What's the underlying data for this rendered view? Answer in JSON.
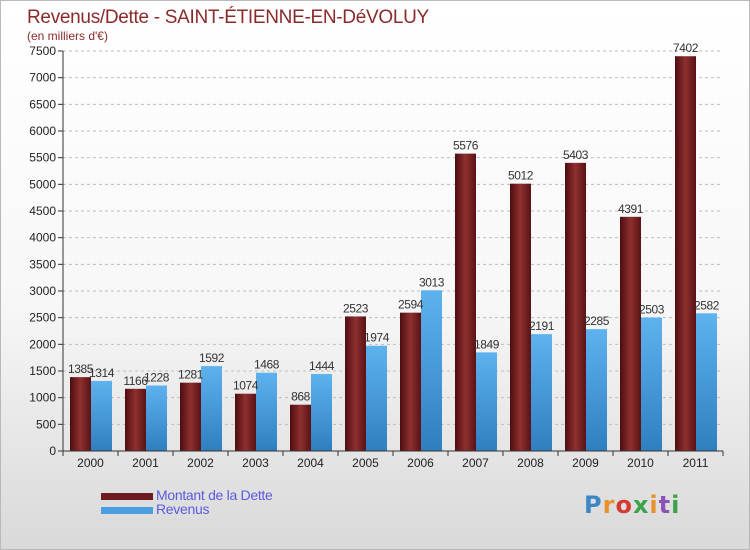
{
  "header": {
    "title": "Revenus/Dette - SAINT-ÉTIENNE-EN-DéVOLUY",
    "subtitle": "(en milliers d'€)"
  },
  "logo": {
    "text": "Proxiti",
    "letters": [
      "P",
      "r",
      "o",
      "x",
      "i",
      "t",
      "i"
    ],
    "colors": [
      "#3f86c5",
      "#e8922e",
      "#d33a32",
      "#3ca34a",
      "#e8922e",
      "#8b53b5",
      "#3ca34a"
    ]
  },
  "colors": {
    "dette": "#6e1b1f",
    "revenus": "#4a9fe0"
  },
  "chart_data": {
    "type": "bar",
    "categories": [
      "2000",
      "2001",
      "2002",
      "2003",
      "2004",
      "2005",
      "2006",
      "2007",
      "2008",
      "2009",
      "2010",
      "2011"
    ],
    "series": [
      {
        "name": "Montant de la Dette",
        "values": [
          1385,
          1166,
          1281,
          1074,
          868,
          2523,
          2594,
          5576,
          5012,
          5403,
          4391,
          7402
        ]
      },
      {
        "name": "Revenus",
        "values": [
          1314,
          1228,
          1592,
          1468,
          1444,
          1974,
          3013,
          1849,
          2191,
          2285,
          2503,
          2582
        ]
      }
    ],
    "ylim": [
      0,
      7500
    ],
    "yticks": [
      0,
      500,
      1000,
      1500,
      2000,
      2500,
      3000,
      3500,
      4000,
      4500,
      5000,
      5500,
      6000,
      6500,
      7000,
      7500
    ],
    "grid": "horizontal dashed",
    "legend_placement": "bottom-left"
  }
}
